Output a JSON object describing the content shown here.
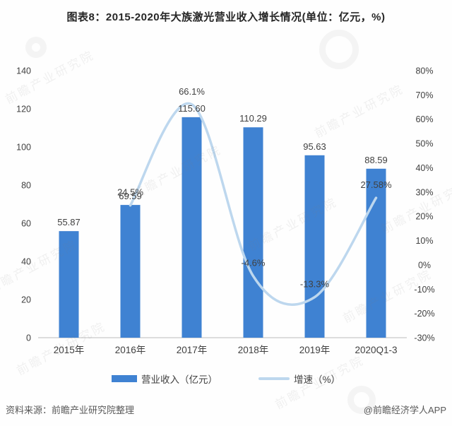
{
  "title": "图表8：2015-2020年大族激光营业收入增长情况(单位：亿元，%)",
  "source_note": "资料来源：前瞻产业研究院整理",
  "credit": "@前瞻经济学人APP",
  "watermark_text": "前瞻产业研究院",
  "colors": {
    "bar": "#3f82d2",
    "line": "#bdd7ee",
    "title_text": "#262626",
    "label_text": "#404040",
    "axis_text": "#404040",
    "footer_text": "#595959",
    "axis_line": "#c9c9c9",
    "background": "#fefefe"
  },
  "chart_data": {
    "type": "bar",
    "subtype": "bar+line combo, dual axis",
    "title": "图表8：2015-2020年大族激光营业收入增长情况(单位：亿元，%)",
    "categories": [
      "2015年",
      "2016年",
      "2017年",
      "2018年",
      "2019年",
      "2020Q1-3"
    ],
    "series": [
      {
        "name": "营业收入（亿元）",
        "type": "bar",
        "axis": "left",
        "values": [
          55.87,
          69.59,
          115.6,
          110.29,
          95.63,
          88.59
        ],
        "labels": [
          "55.87",
          "69.59",
          "115.60",
          "110.29",
          "95.63",
          "88.59"
        ]
      },
      {
        "name": "增速（%）",
        "type": "line",
        "axis": "right",
        "values": [
          null,
          24.5,
          66.1,
          -4.6,
          -13.3,
          27.58
        ],
        "labels": [
          "",
          "24.5%",
          "66.1%",
          "-4.6%",
          "-13.3%",
          "27.58%"
        ]
      }
    ],
    "left_axis": {
      "min": 0,
      "max": 140,
      "step": 20,
      "ticks": [
        "0",
        "20",
        "40",
        "60",
        "80",
        "100",
        "120",
        "140"
      ]
    },
    "right_axis": {
      "min": -30,
      "max": 80,
      "step": 10,
      "ticks": [
        "-30%",
        "-20%",
        "-10%",
        "0%",
        "10%",
        "20%",
        "30%",
        "40%",
        "50%",
        "60%",
        "70%",
        "80%"
      ]
    },
    "legend": [
      {
        "label": "营业收入（亿元）",
        "swatch": "bar"
      },
      {
        "label": "增速（%）",
        "swatch": "line"
      }
    ],
    "grid": false,
    "legend_position": "bottom",
    "xlabel": "",
    "ylabel_left": "亿元",
    "ylabel_right": "%"
  }
}
